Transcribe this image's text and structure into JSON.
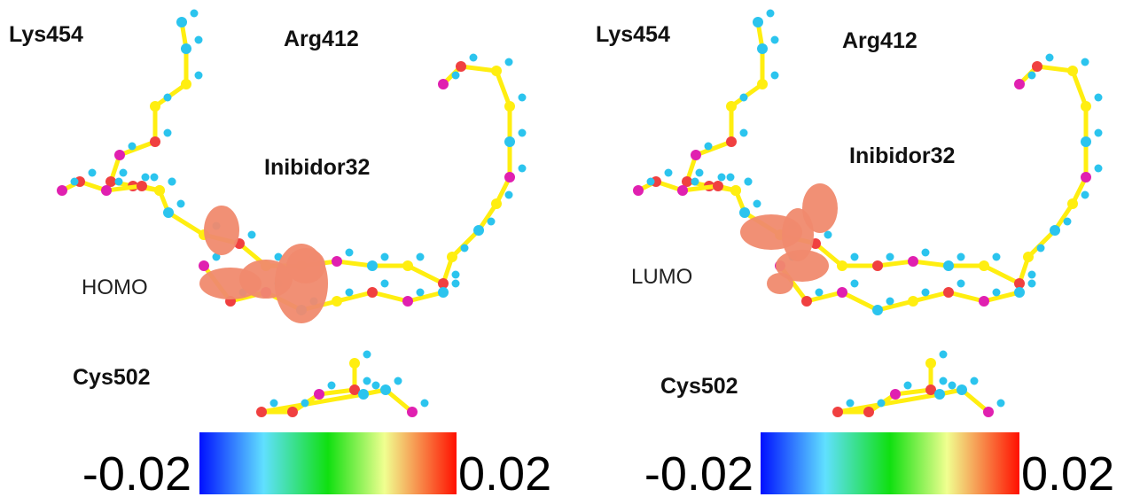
{
  "panels": [
    {
      "residues": [
        "Lys454",
        "Arg412",
        "Inibidor32",
        "Cys502"
      ],
      "orbital": "HOMO",
      "colorbar": {
        "min": -0.02,
        "max": 0.02
      }
    },
    {
      "residues": [
        "Lys454",
        "Arg412",
        "Inibidor32",
        "Cys502"
      ],
      "orbital": "LUMO",
      "colorbar": {
        "min": -0.02,
        "max": 0.02
      }
    }
  ]
}
